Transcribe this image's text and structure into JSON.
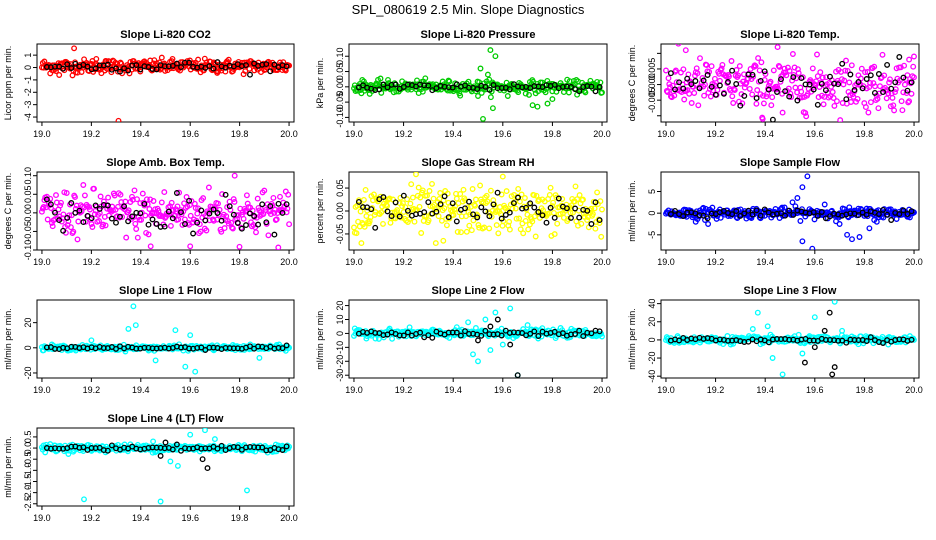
{
  "main_title": "SPL_080619  2.5 Min. Slope Diagnostics",
  "chart_data": [
    {
      "type": "scatter",
      "title": "Slope Li-820 CO2",
      "ylabel": "Licor ppm per min.",
      "color": "#ff0000",
      "xlim": [
        18.98,
        20.02
      ],
      "ylim": [
        -4.4,
        1.9
      ],
      "xticks": [
        "19.0",
        "19.2",
        "19.4",
        "19.6",
        "19.8",
        "20.0"
      ],
      "yticks": [
        -4,
        -3,
        -2,
        -1,
        0,
        1
      ],
      "ytick_labels": [
        "-4",
        "-3",
        "-2",
        "-1",
        "0",
        "1"
      ],
      "center": 0.1,
      "spread": 0.28,
      "n": 300,
      "black_n": 60,
      "outliers": [
        [
          19.13,
          1.55
        ],
        [
          19.31,
          -4.3
        ],
        [
          19.22,
          0.7
        ],
        [
          19.07,
          -0.6
        ]
      ]
    },
    {
      "type": "scatter",
      "title": "Slope Li-820 Pressure",
      "ylabel": "kPa per min.",
      "color": "#00cc00",
      "xlim": [
        18.98,
        20.02
      ],
      "ylim": [
        -0.115,
        0.14
      ],
      "xticks": [
        "19.0",
        "19.2",
        "19.4",
        "19.6",
        "19.8",
        "20.0"
      ],
      "yticks": [
        -0.1,
        -0.05,
        0,
        0.05,
        0.1
      ],
      "ytick_labels": [
        "-0.10",
        "-0.05",
        "0.00",
        "0.05",
        "0.10"
      ],
      "center": 0.0,
      "spread": 0.01,
      "n": 300,
      "black_n": 60,
      "outliers": [
        [
          19.55,
          0.12
        ],
        [
          19.57,
          0.1
        ],
        [
          19.51,
          0.06
        ],
        [
          19.54,
          0.04
        ],
        [
          19.5,
          -0.03
        ],
        [
          19.52,
          -0.105
        ],
        [
          19.56,
          -0.07
        ],
        [
          19.72,
          -0.06
        ],
        [
          19.74,
          -0.065
        ],
        [
          19.78,
          -0.055
        ],
        [
          19.8,
          -0.04
        ],
        [
          19.62,
          -0.03
        ]
      ]
    },
    {
      "type": "scatter",
      "title": "Slope Li-820 Temp.",
      "ylabel": "degrees C per min.",
      "color": "#ff00ff",
      "xlim": [
        18.98,
        20.02
      ],
      "ylim": [
        -0.012,
        0.013
      ],
      "xticks": [
        "19.0",
        "19.2",
        "19.4",
        "19.6",
        "19.8",
        "20.0"
      ],
      "yticks": [
        -0.01,
        -0.005,
        0,
        0.005,
        0.01
      ],
      "ytick_labels": [
        "",
        "-0.005",
        "0.000",
        "0.005",
        ""
      ],
      "center": 0.0,
      "spread": 0.004,
      "n": 300,
      "black_n": 60,
      "outliers": [
        [
          19.45,
          0.012
        ],
        [
          19.08,
          0.011
        ],
        [
          19.39,
          -0.011
        ],
        [
          19.47,
          -0.009
        ],
        [
          20.0,
          0.009
        ],
        [
          19.98,
          0.008
        ]
      ]
    },
    {
      "type": "scatter",
      "title": "Slope Amb. Box Temp.",
      "ylabel": "degrees C per min.",
      "color": "#ff00ff",
      "xlim": [
        18.98,
        20.02
      ],
      "ylim": [
        -0.1,
        0.11
      ],
      "xticks": [
        "19.0",
        "19.2",
        "19.4",
        "19.6",
        "19.8",
        "20.0"
      ],
      "yticks": [
        -0.1,
        -0.05,
        0,
        0.05,
        0.1
      ],
      "ytick_labels": [
        "-0.10",
        "-0.05",
        "0.00",
        "0.05",
        "0.10"
      ],
      "center": 0.0,
      "spread": 0.032,
      "n": 300,
      "black_n": 60,
      "outliers": [
        [
          19.78,
          0.1
        ],
        [
          19.44,
          -0.09
        ],
        [
          19.6,
          -0.09
        ]
      ]
    },
    {
      "type": "scatter",
      "title": "Slope Gas Stream RH",
      "ylabel": "percent per min.",
      "color": "#ffff00",
      "xlim": [
        18.98,
        20.02
      ],
      "ylim": [
        -0.085,
        0.085
      ],
      "xticks": [
        "19.0",
        "19.2",
        "19.4",
        "19.6",
        "19.8",
        "20.0"
      ],
      "yticks": [
        -0.05,
        0,
        0.05
      ],
      "ytick_labels": [
        "-0.05",
        "0.00",
        "0.05"
      ],
      "center": 0.0,
      "spread": 0.025,
      "n": 300,
      "black_n": 60,
      "outliers": [
        [
          19.25,
          0.08
        ],
        [
          19.6,
          0.075
        ],
        [
          19.03,
          -0.07
        ],
        [
          19.33,
          -0.07
        ],
        [
          19.36,
          -0.065
        ]
      ]
    },
    {
      "type": "scatter",
      "title": "Slope Sample Flow",
      "ylabel": "ml/min per min.",
      "color": "#0000ff",
      "xlim": [
        18.98,
        20.02
      ],
      "ylim": [
        -8.5,
        9.5
      ],
      "xticks": [
        "19.0",
        "19.2",
        "19.4",
        "19.6",
        "19.8",
        "20.0"
      ],
      "yticks": [
        -5,
        0,
        5
      ],
      "ytick_labels": [
        "-5",
        "0",
        "5"
      ],
      "center": 0.0,
      "spread": 0.6,
      "n": 300,
      "black_n": 60,
      "outliers": [
        [
          19.57,
          8.5
        ],
        [
          19.55,
          6.0
        ],
        [
          19.53,
          3.5
        ],
        [
          19.51,
          2.5
        ],
        [
          19.55,
          -6.5
        ],
        [
          19.59,
          -8.2
        ],
        [
          19.75,
          -6.0
        ],
        [
          19.78,
          -5.5
        ],
        [
          19.73,
          -5.0
        ],
        [
          19.82,
          -3.5
        ],
        [
          19.7,
          -2.5
        ],
        [
          19.85,
          -2.0
        ],
        [
          19.17,
          -2.5
        ],
        [
          19.12,
          -2.0
        ],
        [
          19.64,
          2.0
        ]
      ]
    },
    {
      "type": "scatter",
      "title": "Slope Line 1 Flow",
      "ylabel": "ml/min per min.",
      "color": "#00ffff",
      "xlim": [
        18.98,
        20.02
      ],
      "ylim": [
        -24,
        38
      ],
      "xticks": [
        "19.0",
        "19.2",
        "19.4",
        "19.6",
        "19.8",
        "20.0"
      ],
      "yticks": [
        -20,
        0,
        20
      ],
      "ytick_labels": [
        "-20",
        "0",
        "20"
      ],
      "center": 0.0,
      "spread": 1.0,
      "n": 300,
      "black_n": 60,
      "outliers": [
        [
          19.37,
          33
        ],
        [
          19.38,
          18
        ],
        [
          19.35,
          15
        ],
        [
          19.62,
          -19
        ],
        [
          19.58,
          -15
        ],
        [
          19.54,
          14
        ],
        [
          19.6,
          10
        ],
        [
          19.46,
          -10
        ],
        [
          19.2,
          6
        ],
        [
          19.88,
          -8
        ]
      ]
    },
    {
      "type": "scatter",
      "title": "Slope Line 2 Flow",
      "ylabel": "ml/min per min.",
      "color": "#00ffff",
      "xlim": [
        18.98,
        20.02
      ],
      "ylim": [
        -32,
        24
      ],
      "xticks": [
        "19.0",
        "19.2",
        "19.4",
        "19.6",
        "19.8",
        "20.0"
      ],
      "yticks": [
        -30,
        -20,
        -10,
        0,
        10,
        20
      ],
      "ytick_labels": [
        "-30",
        "-20",
        "-10",
        "0",
        "10",
        "20"
      ],
      "center": 0.0,
      "spread": 1.5,
      "n": 300,
      "black_n": 60,
      "outliers": [
        [
          19.63,
          18
        ],
        [
          19.57,
          15
        ],
        [
          19.53,
          10
        ],
        [
          19.48,
          -15
        ],
        [
          19.5,
          -20
        ],
        [
          19.55,
          -12
        ],
        [
          19.66,
          -30
        ],
        [
          19.6,
          -8
        ],
        [
          19.46,
          8
        ],
        [
          19.7,
          6
        ]
      ],
      "black_outliers": [
        [
          19.58,
          10
        ],
        [
          19.63,
          -8
        ],
        [
          19.66,
          -30
        ],
        [
          19.5,
          -5
        ],
        [
          19.55,
          5
        ]
      ]
    },
    {
      "type": "scatter",
      "title": "Slope Line 3 Flow",
      "ylabel": "ml/min per min.",
      "color": "#00ffff",
      "xlim": [
        18.98,
        20.02
      ],
      "ylim": [
        -42,
        44
      ],
      "xticks": [
        "19.0",
        "19.2",
        "19.4",
        "19.6",
        "19.8",
        "20.0"
      ],
      "yticks": [
        -40,
        -20,
        0,
        20,
        40
      ],
      "ytick_labels": [
        "-40",
        "-20",
        "0",
        "20",
        "40"
      ],
      "center": 0.0,
      "spread": 2.0,
      "n": 300,
      "black_n": 60,
      "outliers": [
        [
          19.37,
          30
        ],
        [
          19.41,
          15
        ],
        [
          19.43,
          -20
        ],
        [
          19.47,
          -38
        ],
        [
          19.68,
          42
        ],
        [
          19.6,
          25
        ],
        [
          19.55,
          -15
        ],
        [
          19.35,
          12
        ],
        [
          19.71,
          10
        ]
      ],
      "black_outliers": [
        [
          19.66,
          30
        ],
        [
          19.68,
          -30
        ],
        [
          19.67,
          -38
        ],
        [
          19.56,
          -25
        ],
        [
          19.6,
          -8
        ],
        [
          19.64,
          10
        ]
      ]
    },
    {
      "type": "scatter",
      "title": "Slope Line 4 (LT) Flow",
      "ylabel": "ml/min per min.",
      "color": "#00ffff",
      "xlim": [
        18.98,
        20.02
      ],
      "ylim": [
        -2.6,
        0.9
      ],
      "xticks": [
        "19.0",
        "19.2",
        "19.4",
        "19.6",
        "19.8",
        "20.0"
      ],
      "yticks": [
        -2.5,
        -2,
        -1.5,
        -1,
        -0.5,
        0,
        0.5
      ],
      "ytick_labels": [
        "-2.5",
        "-2.0",
        "-1.5",
        "-1.0",
        "-0.5",
        "0.0",
        "0.5"
      ],
      "center": 0.0,
      "spread": 0.08,
      "n": 300,
      "black_n": 60,
      "outliers": [
        [
          19.66,
          0.8
        ],
        [
          19.6,
          0.6
        ],
        [
          19.17,
          -2.3
        ],
        [
          19.48,
          -2.4
        ],
        [
          19.83,
          -1.9
        ],
        [
          19.55,
          -0.8
        ],
        [
          19.52,
          -0.6
        ],
        [
          19.7,
          0.4
        ],
        [
          19.45,
          0.3
        ]
      ],
      "black_outliers": [
        [
          19.67,
          -0.9
        ],
        [
          19.65,
          -0.5
        ],
        [
          19.5,
          0.25
        ],
        [
          19.48,
          -0.35
        ]
      ]
    }
  ]
}
